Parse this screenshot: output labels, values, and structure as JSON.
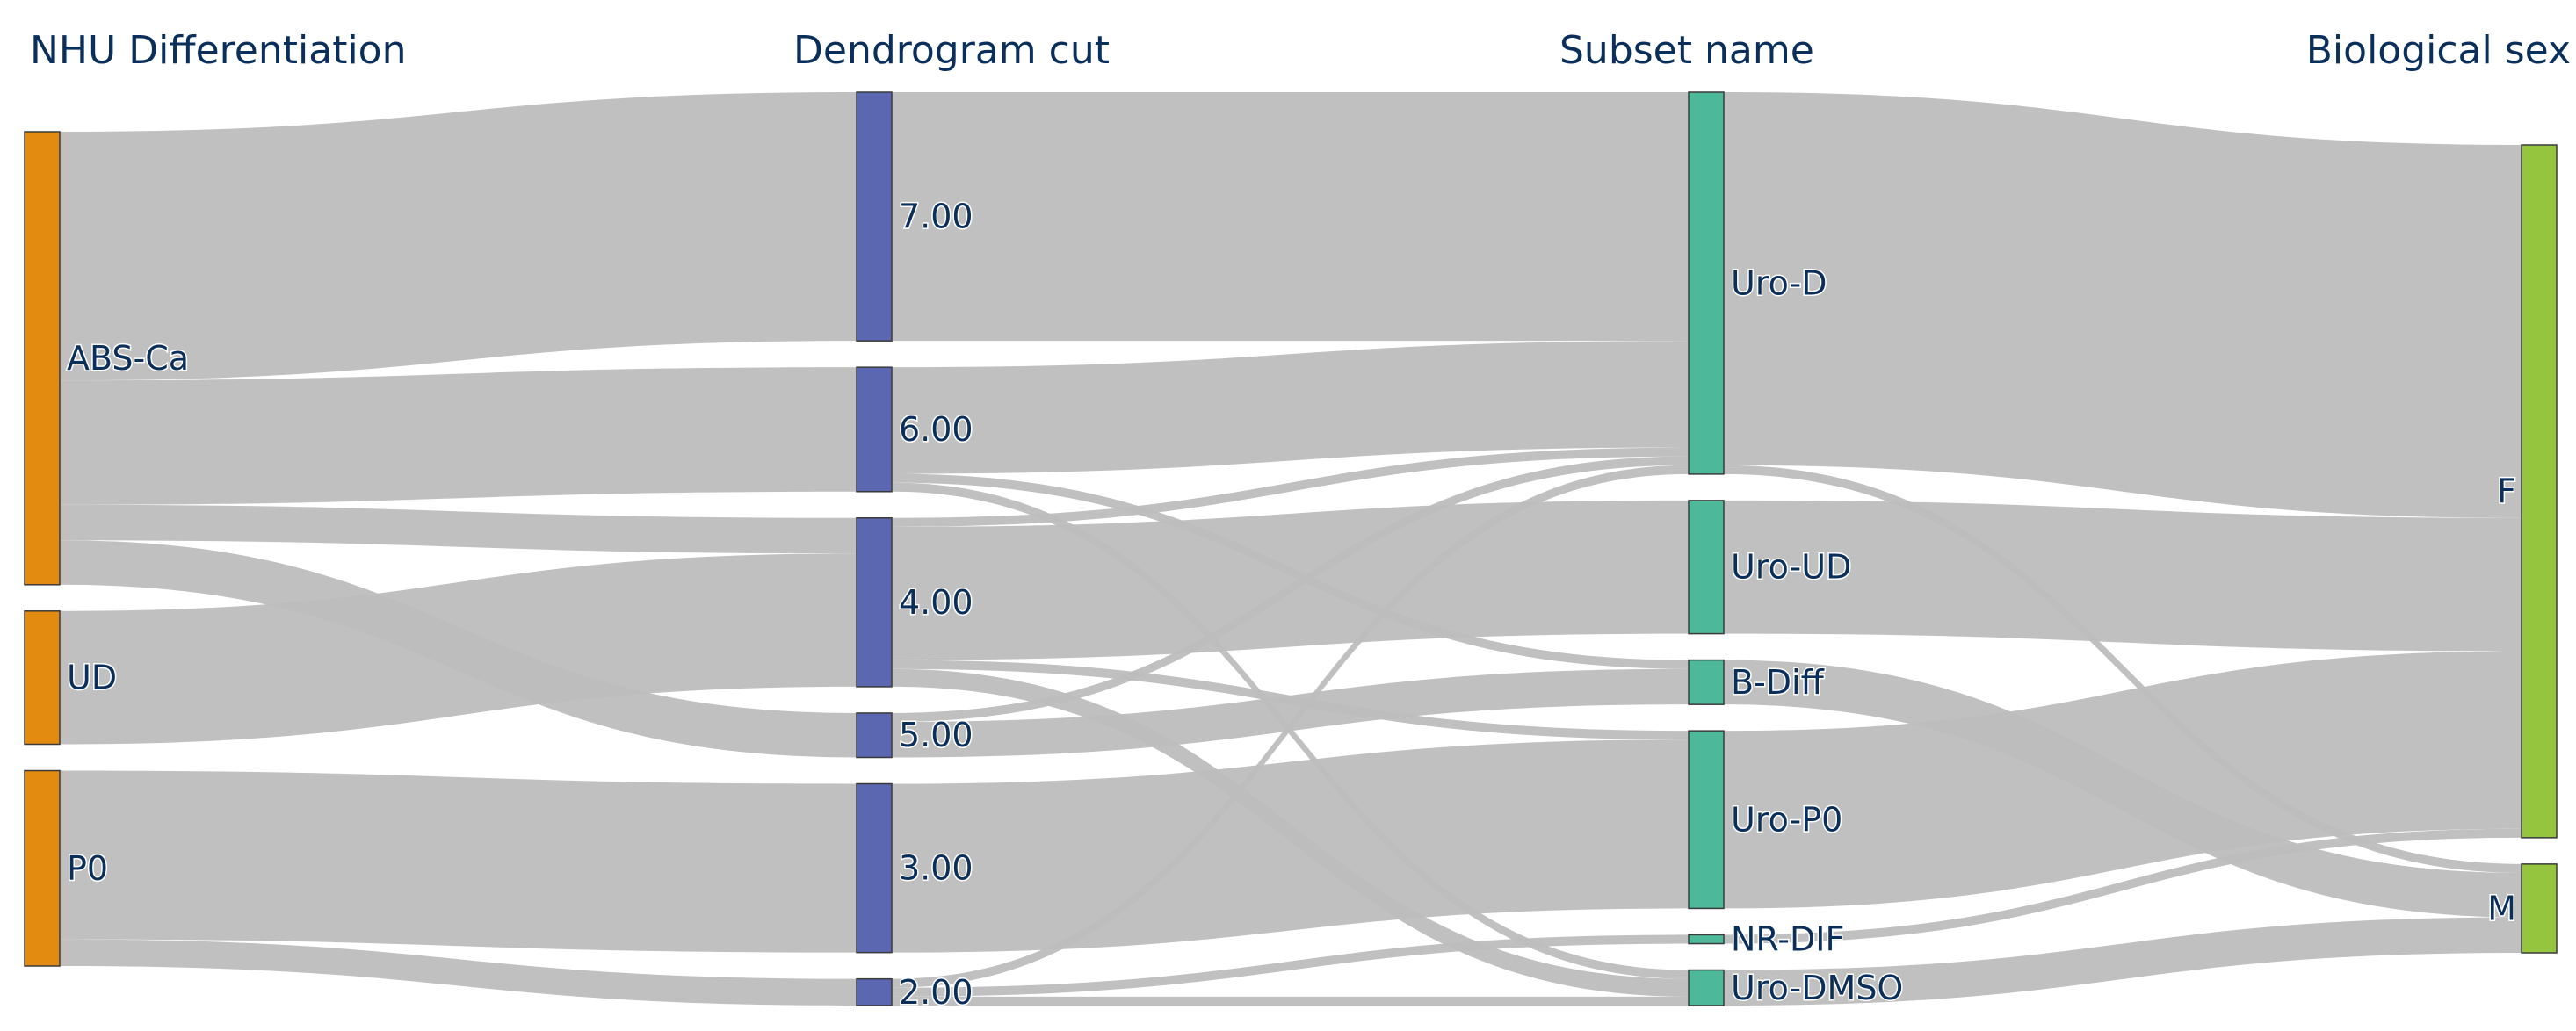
{
  "chart_data": {
    "type": "sankey",
    "columns": [
      {
        "title": "NHU Differentiation",
        "nodes": [
          {
            "id": "ABS-Ca",
            "label": "ABS-Ca",
            "color": "#e38a10"
          },
          {
            "id": "UD",
            "label": "UD",
            "color": "#e38a10"
          },
          {
            "id": "P0",
            "label": "P0",
            "color": "#e38a10"
          }
        ]
      },
      {
        "title": "Dendrogram cut",
        "nodes": [
          {
            "id": "7",
            "label": "7.00",
            "color": "#5b67b0"
          },
          {
            "id": "6",
            "label": "6.00",
            "color": "#5b67b0"
          },
          {
            "id": "4",
            "label": "4.00",
            "color": "#5b67b0"
          },
          {
            "id": "5",
            "label": "5.00",
            "color": "#5b67b0"
          },
          {
            "id": "3",
            "label": "3.00",
            "color": "#5b67b0"
          },
          {
            "id": "2",
            "label": "2.00",
            "color": "#5b67b0"
          }
        ]
      },
      {
        "title": "Subset name",
        "nodes": [
          {
            "id": "Uro-D",
            "label": "Uro-D",
            "color": "#4db89a"
          },
          {
            "id": "Uro-UD",
            "label": "Uro-UD",
            "color": "#4db89a"
          },
          {
            "id": "B-Diff",
            "label": "B-Diff",
            "color": "#4db89a"
          },
          {
            "id": "Uro-P0",
            "label": "Uro-P0",
            "color": "#4db89a"
          },
          {
            "id": "NR-DIF",
            "label": "NR-DIF",
            "color": "#4db89a"
          },
          {
            "id": "Uro-DMSO",
            "label": "Uro-DMSO",
            "color": "#4db89a"
          }
        ]
      },
      {
        "title": "Biological sex",
        "nodes": [
          {
            "id": "F",
            "label": "F",
            "color": "#95c53f"
          },
          {
            "id": "M",
            "label": "M",
            "color": "#95c53f"
          }
        ]
      }
    ],
    "links": [
      {
        "source": "ABS-Ca",
        "target": "7",
        "value": 28
      },
      {
        "source": "ABS-Ca",
        "target": "6",
        "value": 14
      },
      {
        "source": "ABS-Ca",
        "target": "4",
        "value": 4
      },
      {
        "source": "ABS-Ca",
        "target": "5",
        "value": 5
      },
      {
        "source": "UD",
        "target": "4",
        "value": 15
      },
      {
        "source": "P0",
        "target": "3",
        "value": 19
      },
      {
        "source": "P0",
        "target": "2",
        "value": 3
      },
      {
        "source": "7",
        "target": "Uro-D",
        "value": 28
      },
      {
        "source": "6",
        "target": "Uro-D",
        "value": 12
      },
      {
        "source": "6",
        "target": "B-Diff",
        "value": 1
      },
      {
        "source": "6",
        "target": "Uro-DMSO",
        "value": 1
      },
      {
        "source": "4",
        "target": "Uro-UD",
        "value": 15
      },
      {
        "source": "4",
        "target": "Uro-D",
        "value": 1
      },
      {
        "source": "4",
        "target": "Uro-P0",
        "value": 1
      },
      {
        "source": "4",
        "target": "Uro-DMSO",
        "value": 2
      },
      {
        "source": "5",
        "target": "Uro-D",
        "value": 1
      },
      {
        "source": "5",
        "target": "B-Diff",
        "value": 4
      },
      {
        "source": "3",
        "target": "Uro-P0",
        "value": 19
      },
      {
        "source": "2",
        "target": "Uro-D",
        "value": 1
      },
      {
        "source": "2",
        "target": "NR-DIF",
        "value": 1
      },
      {
        "source": "2",
        "target": "Uro-DMSO",
        "value": 1
      },
      {
        "source": "Uro-D",
        "target": "F",
        "value": 42
      },
      {
        "source": "Uro-D",
        "target": "M",
        "value": 1
      },
      {
        "source": "Uro-UD",
        "target": "F",
        "value": 15
      },
      {
        "source": "B-Diff",
        "target": "M",
        "value": 5
      },
      {
        "source": "Uro-P0",
        "target": "F",
        "value": 20
      },
      {
        "source": "NR-DIF",
        "target": "F",
        "value": 1
      },
      {
        "source": "Uro-DMSO",
        "target": "M",
        "value": 4
      }
    ],
    "link_color": "#bdbdbd",
    "node_border_color": "#3a3a3a"
  }
}
